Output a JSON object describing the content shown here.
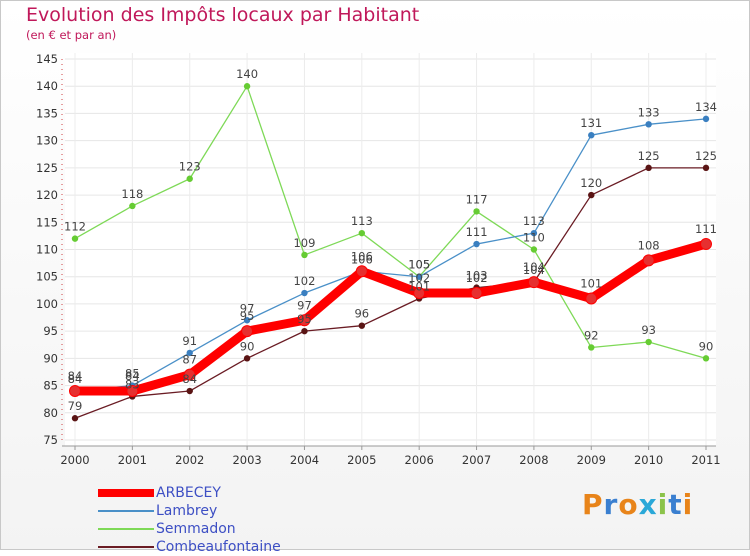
{
  "header": {
    "title": "Evolution des Impôts locaux par Habitant",
    "subtitle": "(en € et par an)"
  },
  "brand": {
    "text": "Proxiti",
    "letters": [
      "P",
      "r",
      "o",
      "x",
      "i",
      "t",
      "i"
    ],
    "letter_colors": [
      "#e8841a",
      "#3a7fd0",
      "#e8841a",
      "#2aa8d8",
      "#8bc34a",
      "#3a7fd0",
      "#e8841a"
    ]
  },
  "chart_data": {
    "type": "line",
    "title": "Evolution des Impôts locaux par Habitant",
    "subtitle": "(en € et par an)",
    "xlabel": "",
    "ylabel": "",
    "x": [
      "2000",
      "2001",
      "2002",
      "2003",
      "2004",
      "2005",
      "2006",
      "2007",
      "2008",
      "2009",
      "2010",
      "2011"
    ],
    "ylim": [
      75,
      145
    ],
    "yticks": [
      75,
      80,
      85,
      90,
      95,
      100,
      105,
      110,
      115,
      120,
      125,
      130,
      135,
      140,
      145
    ],
    "grid": true,
    "legend_position": "bottom-left",
    "series": [
      {
        "name": "ARBECEY",
        "color": "#ff0000",
        "values": [
          84,
          84,
          87,
          95,
          97,
          106,
          102,
          102,
          104,
          101,
          108,
          111
        ]
      },
      {
        "name": "Lambrey",
        "color": "#4a90c8",
        "values": [
          84,
          85,
          91,
          97,
          102,
          106,
          105,
          111,
          113,
          131,
          133,
          134
        ]
      },
      {
        "name": "Semmadon",
        "color": "#7ed957",
        "values": [
          112,
          118,
          123,
          140,
          109,
          113,
          105,
          117,
          110,
          92,
          93,
          90
        ]
      },
      {
        "name": "Combeaufontaine",
        "color": "#6a1c24",
        "values": [
          79,
          83,
          84,
          90,
          95,
          96,
          101,
          103,
          104,
          120,
          125,
          125
        ]
      }
    ]
  }
}
